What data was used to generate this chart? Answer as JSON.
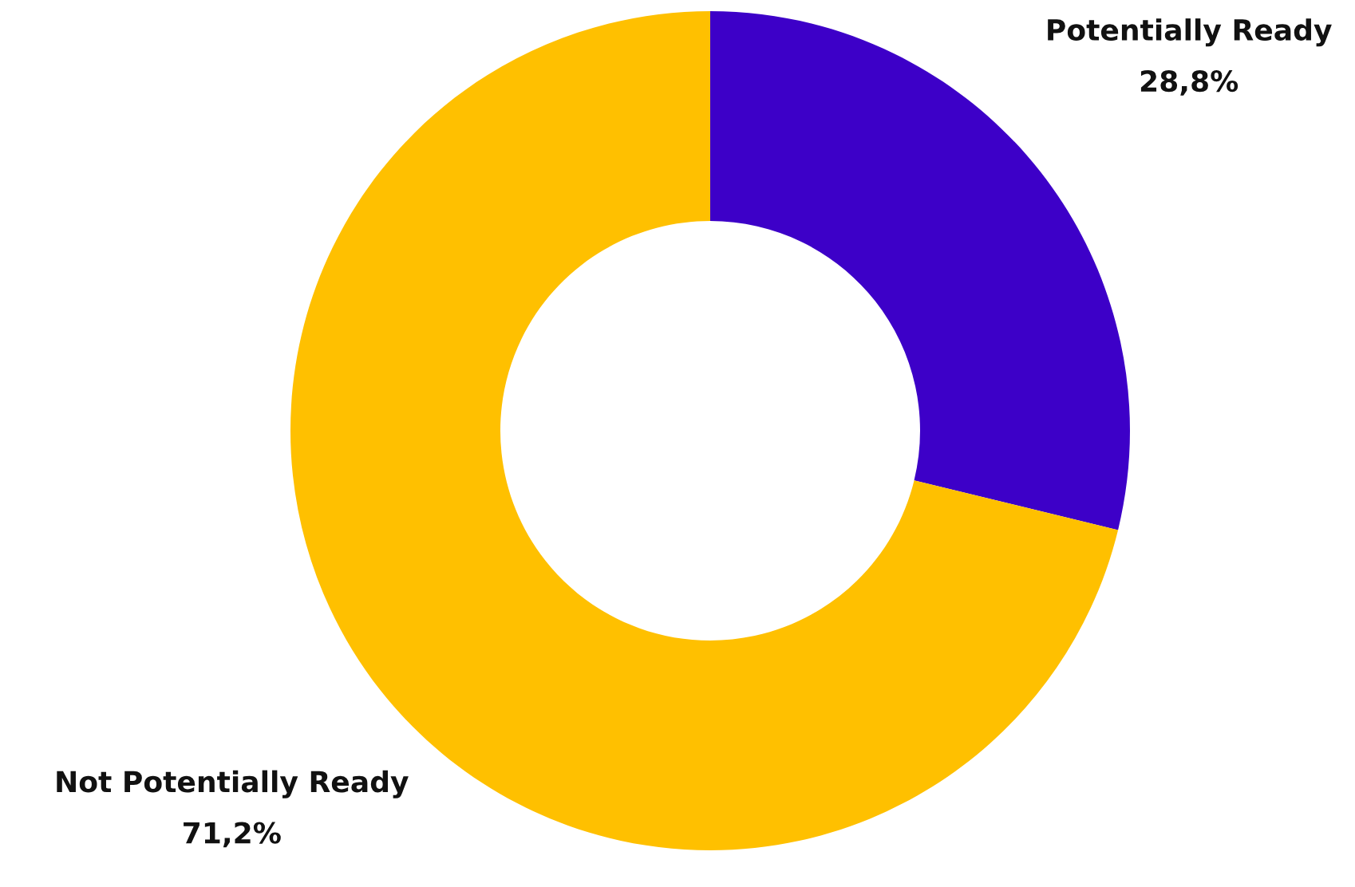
{
  "chart_data": {
    "type": "donut",
    "categories": [
      "Potentially Ready",
      "Not Potentially Ready"
    ],
    "values": [
      28.8,
      71.2
    ],
    "colors": [
      "#3d00c8",
      "#ffc000"
    ],
    "value_labels": [
      "28,8%",
      "71,2%"
    ],
    "legend": false
  }
}
